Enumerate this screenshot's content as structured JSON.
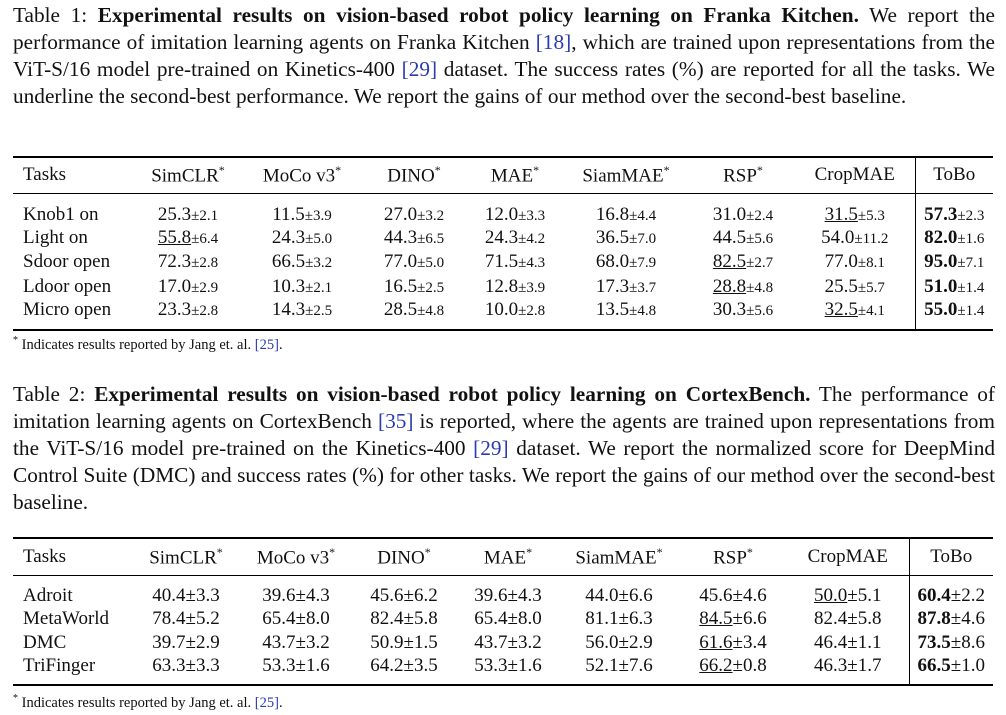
{
  "table1": {
    "caption_label": "Table 1:",
    "caption_bold": "Experimental results on vision-based robot policy learning on Franka Kitchen.",
    "caption_p1": "We report the performance of imitation learning agents on Franka Kitchen ",
    "cite1": "[18]",
    "caption_p2": ", which are trained upon representations from the ViT-S/16 model pre-trained on Kinetics-400 ",
    "cite2": "[29]",
    "caption_p3": " dataset. The success rates (%) are reported for all the tasks. We underline the second-best performance. We report the gains of our method over the second-best baseline.",
    "header": {
      "tasks": "Tasks",
      "simclr": "SimCLR",
      "mocov3": "MoCo v3",
      "dino": "DINO",
      "mae": "MAE",
      "siammae": "SiamMAE",
      "rsp": "RSP",
      "cropmae": "CropMAE",
      "tobo": "ToBo",
      "star": "*"
    },
    "rows": [
      {
        "task": "Knob1 on",
        "simclr": [
          "25.3",
          "±2.1"
        ],
        "mocov3": [
          "11.5",
          "±3.9"
        ],
        "dino": [
          "27.0",
          "±3.2"
        ],
        "mae": [
          "12.0",
          "±3.3"
        ],
        "siammae": [
          "16.8",
          "±4.4"
        ],
        "rsp": [
          "31.0",
          "±2.4"
        ],
        "cropmae": [
          "31.5",
          "±5.3"
        ],
        "tobo": [
          "57.3",
          "±2.3"
        ]
      },
      {
        "task": "Light on",
        "simclr": [
          "55.8",
          "±6.4"
        ],
        "mocov3": [
          "24.3",
          "±5.0"
        ],
        "dino": [
          "44.3",
          "±6.5"
        ],
        "mae": [
          "24.3",
          "±4.2"
        ],
        "siammae": [
          "36.5",
          "±7.0"
        ],
        "rsp": [
          "44.5",
          "±5.6"
        ],
        "cropmae": [
          "54.0",
          "±11.2"
        ],
        "tobo": [
          "82.0",
          "±1.6"
        ]
      },
      {
        "task": "Sdoor open",
        "simclr": [
          "72.3",
          "±2.8"
        ],
        "mocov3": [
          "66.5",
          "±3.2"
        ],
        "dino": [
          "77.0",
          "±5.0"
        ],
        "mae": [
          "71.5",
          "±4.3"
        ],
        "siammae": [
          "68.0",
          "±7.9"
        ],
        "rsp": [
          "82.5",
          "±2.7"
        ],
        "cropmae": [
          "77.0",
          "±8.1"
        ],
        "tobo": [
          "95.0",
          "±7.1"
        ]
      },
      {
        "task": "Ldoor open",
        "simclr": [
          "17.0",
          "±2.9"
        ],
        "mocov3": [
          "10.3",
          "±2.1"
        ],
        "dino": [
          "16.5",
          "±2.5"
        ],
        "mae": [
          "12.8",
          "±3.9"
        ],
        "siammae": [
          "17.3",
          "±3.7"
        ],
        "rsp": [
          "28.8",
          "±4.8"
        ],
        "cropmae": [
          "25.5",
          "±5.7"
        ],
        "tobo": [
          "51.0",
          "±1.4"
        ]
      },
      {
        "task": "Micro open",
        "simclr": [
          "23.3",
          "±2.8"
        ],
        "mocov3": [
          "14.3",
          "±2.5"
        ],
        "dino": [
          "28.5",
          "±4.8"
        ],
        "mae": [
          "10.0",
          "±2.8"
        ],
        "siammae": [
          "13.5",
          "±4.8"
        ],
        "rsp": [
          "30.3",
          "±5.6"
        ],
        "cropmae": [
          "32.5",
          "±4.1"
        ],
        "tobo": [
          "55.0",
          "±1.4"
        ]
      }
    ],
    "footnote_star": "*",
    "footnote_text": " Indicates results reported by Jang et. al. ",
    "footnote_cite": "[25]",
    "footnote_end": "."
  },
  "table2": {
    "caption_label": "Table 2:",
    "caption_bold": "Experimental results on vision-based robot policy learning on CortexBench.",
    "caption_p1": " The performance of imitation learning agents on CortexBench ",
    "cite1": "[35]",
    "caption_p2": " is reported, where the agents are trained upon representations from the ViT-S/16 model pre-trained on the Kinetics-400 ",
    "cite2": "[29]",
    "caption_p3": " dataset. We report the normalized score for DeepMind Control Suite (DMC) and success rates (%) for other tasks. We report the gains of our method over the second-best baseline.",
    "header": {
      "tasks": "Tasks",
      "simclr": "SimCLR",
      "mocov3": "MoCo v3",
      "dino": "DINO",
      "mae": "MAE",
      "siammae": "SiamMAE",
      "rsp": "RSP",
      "cropmae": "CropMAE",
      "tobo": "ToBo",
      "star": "*"
    },
    "rows": [
      {
        "task": "Adroit",
        "simclr": [
          "40.4",
          "±3.3"
        ],
        "mocov3": [
          "39.6",
          "±4.3"
        ],
        "dino": [
          "45.6",
          "±6.2"
        ],
        "mae": [
          "39.6",
          "±4.3"
        ],
        "siammae": [
          "44.0",
          "±6.6"
        ],
        "rsp": [
          "45.6",
          "±4.6"
        ],
        "cropmae": [
          "50.0",
          "±5.1"
        ],
        "tobo": [
          "60.4",
          "±2.2"
        ]
      },
      {
        "task": "MetaWorld",
        "simclr": [
          "78.4",
          "±5.2"
        ],
        "mocov3": [
          "65.4",
          "±8.0"
        ],
        "dino": [
          "82.4",
          "±5.8"
        ],
        "mae": [
          "65.4",
          "±8.0"
        ],
        "siammae": [
          "81.1",
          "±6.3"
        ],
        "rsp": [
          "84.5",
          "±6.6"
        ],
        "cropmae": [
          "82.4",
          "±5.8"
        ],
        "tobo": [
          "87.8",
          "±4.6"
        ]
      },
      {
        "task": "DMC",
        "simclr": [
          "39.7",
          "±2.9"
        ],
        "mocov3": [
          "43.7",
          "±3.2"
        ],
        "dino": [
          "50.9",
          "±1.5"
        ],
        "mae": [
          "43.7",
          "±3.2"
        ],
        "siammae": [
          "56.0",
          "±2.9"
        ],
        "rsp": [
          "61.6",
          "±3.4"
        ],
        "cropmae": [
          "46.4",
          "±1.1"
        ],
        "tobo": [
          "73.5",
          "±8.6"
        ]
      },
      {
        "task": "TriFinger",
        "simclr": [
          "63.3",
          "±3.3"
        ],
        "mocov3": [
          "53.3",
          "±1.6"
        ],
        "dino": [
          "64.2",
          "±3.5"
        ],
        "mae": [
          "53.3",
          "±1.6"
        ],
        "siammae": [
          "52.1",
          "±7.6"
        ],
        "rsp": [
          "66.2",
          "±0.8"
        ],
        "cropmae": [
          "46.3",
          "±1.7"
        ],
        "tobo": [
          "66.5",
          "±1.0"
        ]
      }
    ],
    "footnote_star": "*",
    "footnote_text": " Indicates results reported by Jang et. al. ",
    "footnote_cite": "[25]",
    "footnote_end": "."
  }
}
